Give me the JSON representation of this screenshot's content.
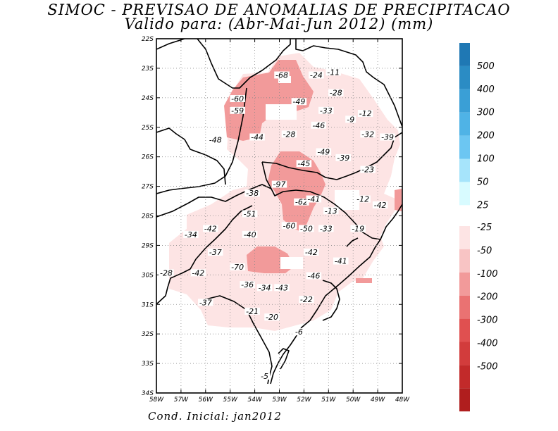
{
  "title": "SIMOC - PREVISAO DE ANOMALIAS DE PRECIPITACAO",
  "subtitle": "Valido para: (Abr-Mai-Jun 2012) (mm)",
  "footer": "Cond. Inicial: jan2012",
  "lat_labels": [
    "22S",
    "23S",
    "24S",
    "25S",
    "26S",
    "27S",
    "28S",
    "29S",
    "30S",
    "31S",
    "32S",
    "33S",
    "34S"
  ],
  "lon_labels": [
    "58W",
    "57W",
    "56W",
    "55W",
    "54W",
    "53W",
    "52W",
    "51W",
    "50W",
    "49W",
    "48W"
  ],
  "colorbar": {
    "positive": [
      {
        "label": "500",
        "color": "#1f78b4"
      },
      {
        "label": "400",
        "color": "#2b8cc4"
      },
      {
        "label": "300",
        "color": "#3a9fd6"
      },
      {
        "label": "200",
        "color": "#4fb3e6"
      },
      {
        "label": "100",
        "color": "#6cc6f2"
      },
      {
        "label": "50",
        "color": "#a6e4fb"
      },
      {
        "label": "25",
        "color": "#d8fbff"
      }
    ],
    "negative": [
      {
        "label": "-25",
        "color": "#fde4e4"
      },
      {
        "label": "-50",
        "color": "#f8c4c4"
      },
      {
        "label": "-100",
        "color": "#f29a9a"
      },
      {
        "label": "-200",
        "color": "#ea7272"
      },
      {
        "label": "-300",
        "color": "#e05050"
      },
      {
        "label": "-400",
        "color": "#d23c3c"
      },
      {
        "label": "-500",
        "color": "#c22a2a"
      },
      {
        "label": "",
        "color": "#b01e1e"
      }
    ]
  },
  "anomaly_labels": [
    {
      "text": "-68",
      "lon": -52.9,
      "lat": -23.3
    },
    {
      "text": "-24",
      "lon": -51.5,
      "lat": -23.3
    },
    {
      "text": "-11",
      "lon": -50.8,
      "lat": -23.2
    },
    {
      "text": "-28",
      "lon": -50.7,
      "lat": -23.9
    },
    {
      "text": "-60",
      "lon": -54.7,
      "lat": -24.1
    },
    {
      "text": "-49",
      "lon": -52.2,
      "lat": -24.2
    },
    {
      "text": "-59",
      "lon": -54.7,
      "lat": -24.5
    },
    {
      "text": "-33",
      "lon": -51.1,
      "lat": -24.5
    },
    {
      "text": "-12",
      "lon": -49.5,
      "lat": -24.6
    },
    {
      "text": "-9",
      "lon": -50.1,
      "lat": -24.8
    },
    {
      "text": "-46",
      "lon": -51.4,
      "lat": -25.0
    },
    {
      "text": "-32",
      "lon": -49.4,
      "lat": -25.3
    },
    {
      "text": "-39",
      "lon": -48.6,
      "lat": -25.4
    },
    {
      "text": "-48",
      "lon": -55.6,
      "lat": -25.5
    },
    {
      "text": "-44",
      "lon": -53.9,
      "lat": -25.4
    },
    {
      "text": "-28",
      "lon": -52.6,
      "lat": -25.3
    },
    {
      "text": "-49",
      "lon": -51.2,
      "lat": -25.9
    },
    {
      "text": "-39",
      "lon": -50.4,
      "lat": -26.1
    },
    {
      "text": "-45",
      "lon": -52.0,
      "lat": -26.3
    },
    {
      "text": "-23",
      "lon": -49.4,
      "lat": -26.5
    },
    {
      "text": "-97",
      "lon": -53.0,
      "lat": -27.0
    },
    {
      "text": "-38",
      "lon": -54.1,
      "lat": -27.3
    },
    {
      "text": "-62",
      "lon": -52.1,
      "lat": -27.6
    },
    {
      "text": "-41",
      "lon": -51.6,
      "lat": -27.5
    },
    {
      "text": "-12",
      "lon": -49.6,
      "lat": -27.5
    },
    {
      "text": "-42",
      "lon": -48.9,
      "lat": -27.7
    },
    {
      "text": "-13",
      "lon": -50.9,
      "lat": -27.9
    },
    {
      "text": "-51",
      "lon": -54.2,
      "lat": -28.0
    },
    {
      "text": "-42",
      "lon": -55.8,
      "lat": -28.5
    },
    {
      "text": "-60",
      "lon": -52.6,
      "lat": -28.4
    },
    {
      "text": "-50",
      "lon": -51.9,
      "lat": -28.5
    },
    {
      "text": "-33",
      "lon": -51.1,
      "lat": -28.5
    },
    {
      "text": "-19",
      "lon": -49.8,
      "lat": -28.5
    },
    {
      "text": "-34",
      "lon": -56.6,
      "lat": -28.7
    },
    {
      "text": "-40",
      "lon": -54.2,
      "lat": -28.7
    },
    {
      "text": "-37",
      "lon": -55.6,
      "lat": -29.3
    },
    {
      "text": "-42",
      "lon": -51.7,
      "lat": -29.3
    },
    {
      "text": "-41",
      "lon": -50.5,
      "lat": -29.6
    },
    {
      "text": "-70",
      "lon": -54.7,
      "lat": -29.8
    },
    {
      "text": "-28",
      "lon": -57.6,
      "lat": -30.0
    },
    {
      "text": "-42",
      "lon": -56.3,
      "lat": -30.0
    },
    {
      "text": "-46",
      "lon": -51.6,
      "lat": -30.1
    },
    {
      "text": "-36",
      "lon": -54.3,
      "lat": -30.4
    },
    {
      "text": "-34",
      "lon": -53.6,
      "lat": -30.5
    },
    {
      "text": "-43",
      "lon": -52.9,
      "lat": -30.5
    },
    {
      "text": "-22",
      "lon": -51.9,
      "lat": -30.9
    },
    {
      "text": "-37",
      "lon": -56.0,
      "lat": -31.0
    },
    {
      "text": "-21",
      "lon": -54.1,
      "lat": -31.3
    },
    {
      "text": "-20",
      "lon": -53.3,
      "lat": -31.5
    },
    {
      "text": "-6",
      "lon": -52.2,
      "lat": -32.0
    },
    {
      "text": "-5",
      "lon": -53.6,
      "lat": -33.5
    }
  ]
}
